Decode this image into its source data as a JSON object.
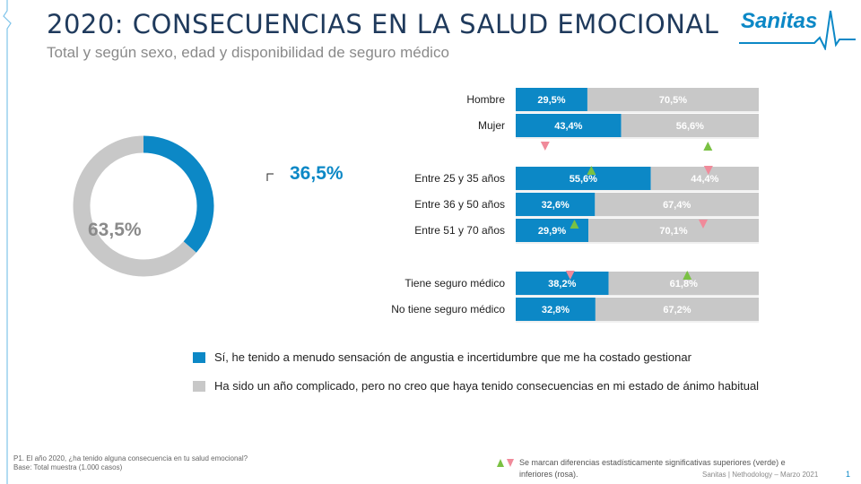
{
  "header": {
    "title": "2020: CONSECUENCIAS EN LA SALUD EMOCIONAL",
    "subtitle": "Total y según sexo, edad y disponibilidad de seguro médico",
    "logo_text": "Sanitas"
  },
  "colors": {
    "blue": "#0c88c6",
    "gray": "#c8c8c8",
    "green": "#7ac143",
    "pink": "#f08a9a",
    "title": "#1f3a5c"
  },
  "chart_data": [
    {
      "type": "pie",
      "variant": "donut",
      "labels": [
        "Sí, he tenido a menudo sensación de angustia e incertidumbre que me ha costado gestionar",
        "Ha sido un año complicado, pero no creo que haya tenido consecuencias en mi estado de ánimo habitual"
      ],
      "values": [
        36.5,
        63.5
      ],
      "value_labels": [
        "36,5%",
        "63,5%"
      ],
      "colors": [
        "#0c88c6",
        "#c8c8c8"
      ]
    },
    {
      "type": "bar",
      "orientation": "horizontal",
      "stacked": "100%",
      "groups": [
        {
          "categories": [
            "Hombre",
            "Mujer"
          ],
          "si": [
            29.5,
            43.4
          ],
          "no": [
            70.5,
            56.6
          ],
          "si_labels": [
            "29,5%",
            "43,4%"
          ],
          "no_labels": [
            "70,5%",
            "56,6%"
          ]
        },
        {
          "categories": [
            "Entre 25 y 35 años",
            "Entre 36 y 50 años",
            "Entre 51 y 70 años"
          ],
          "si": [
            55.6,
            32.6,
            29.9
          ],
          "no": [
            44.4,
            67.4,
            70.1
          ],
          "si_labels": [
            "55,6%",
            "32,6%",
            "29,9%"
          ],
          "no_labels": [
            "44,4%",
            "67,4%",
            "70,1%"
          ]
        },
        {
          "categories": [
            "Tiene seguro médico",
            "No tiene seguro médico"
          ],
          "si": [
            38.2,
            32.8
          ],
          "no": [
            61.8,
            67.2
          ],
          "si_labels": [
            "38,2%",
            "32,8%"
          ],
          "no_labels": [
            "61,8%",
            "67,2%"
          ]
        }
      ],
      "significance_markers": [
        {
          "row": "Mujer",
          "segment": "si",
          "direction": "down",
          "color": "pink",
          "placement": "below"
        },
        {
          "row": "Mujer",
          "segment": "no",
          "direction": "up",
          "color": "green",
          "placement": "below"
        },
        {
          "row": "Entre 25 y 35 años",
          "segment": "si",
          "direction": "up",
          "color": "green",
          "placement": "on-label"
        },
        {
          "row": "Entre 25 y 35 años",
          "segment": "no",
          "direction": "down",
          "color": "pink",
          "placement": "on-label"
        },
        {
          "row": "Entre 51 y 70 años",
          "segment": "si",
          "direction": "up",
          "color": "green",
          "placement": "after-label"
        },
        {
          "row": "Entre 51 y 70 años",
          "segment": "no",
          "direction": "down",
          "color": "pink",
          "placement": "after-label"
        },
        {
          "row": "Tiene seguro médico",
          "segment": "si",
          "direction": "down",
          "color": "pink",
          "placement": "on-label"
        },
        {
          "row": "Tiene seguro médico",
          "segment": "no",
          "direction": "up",
          "color": "green",
          "placement": "on-label"
        }
      ]
    }
  ],
  "legend": [
    {
      "label": "Sí, he tenido a menudo sensación de angustia e incertidumbre que me ha costado gestionar",
      "color": "#0c88c6"
    },
    {
      "label": "Ha sido un año complicado, pero no creo que haya tenido consecuencias  en mi estado de ánimo habitual",
      "color": "#c8c8c8"
    }
  ],
  "footer": {
    "question": "P1. El año 2020, ¿ha tenido alguna consecuencia  en tu salud emocional?",
    "base": "Base: Total muestra (1.000 casos)",
    "significance_note": "Se marcan diferencias estadísticamente significativas superiores (verde) e inferiores (rosa).",
    "credit": "Sanitas | Nethodology – Marzo 2021",
    "page": "1"
  }
}
